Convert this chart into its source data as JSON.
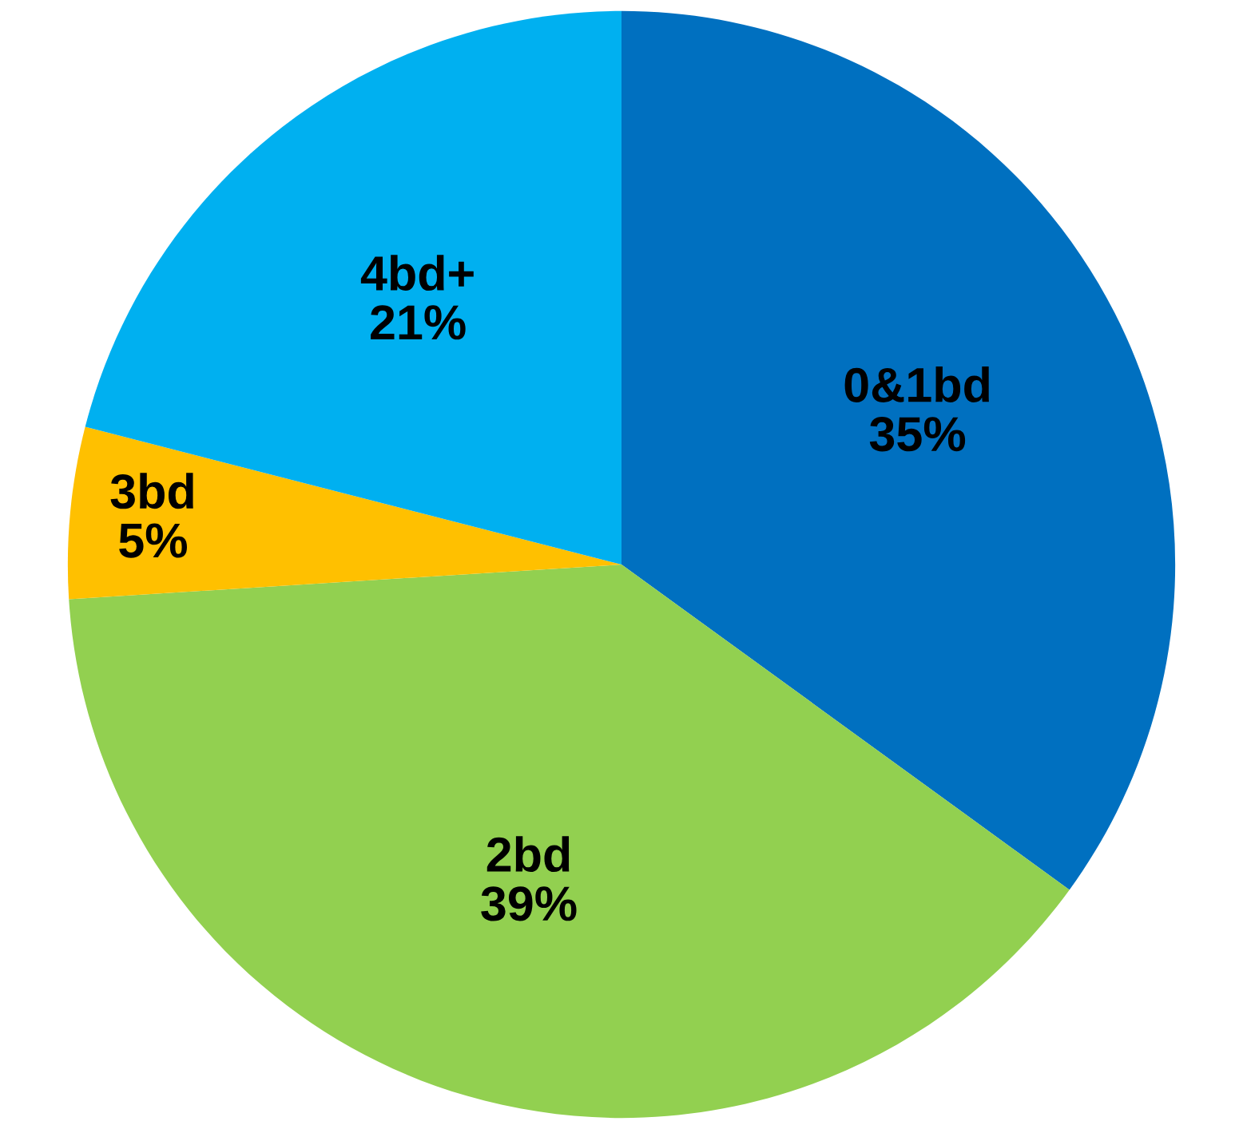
{
  "chart_data": {
    "type": "pie",
    "categories": [
      "0&1bd",
      "2bd",
      "3bd",
      "4bd+"
    ],
    "values": [
      35,
      39,
      5,
      21
    ],
    "value_labels": [
      "35%",
      "39%",
      "5%",
      "21%"
    ],
    "colors": [
      "#0070c0",
      "#92d050",
      "#ffc000",
      "#00b0f0"
    ],
    "legend": false
  }
}
